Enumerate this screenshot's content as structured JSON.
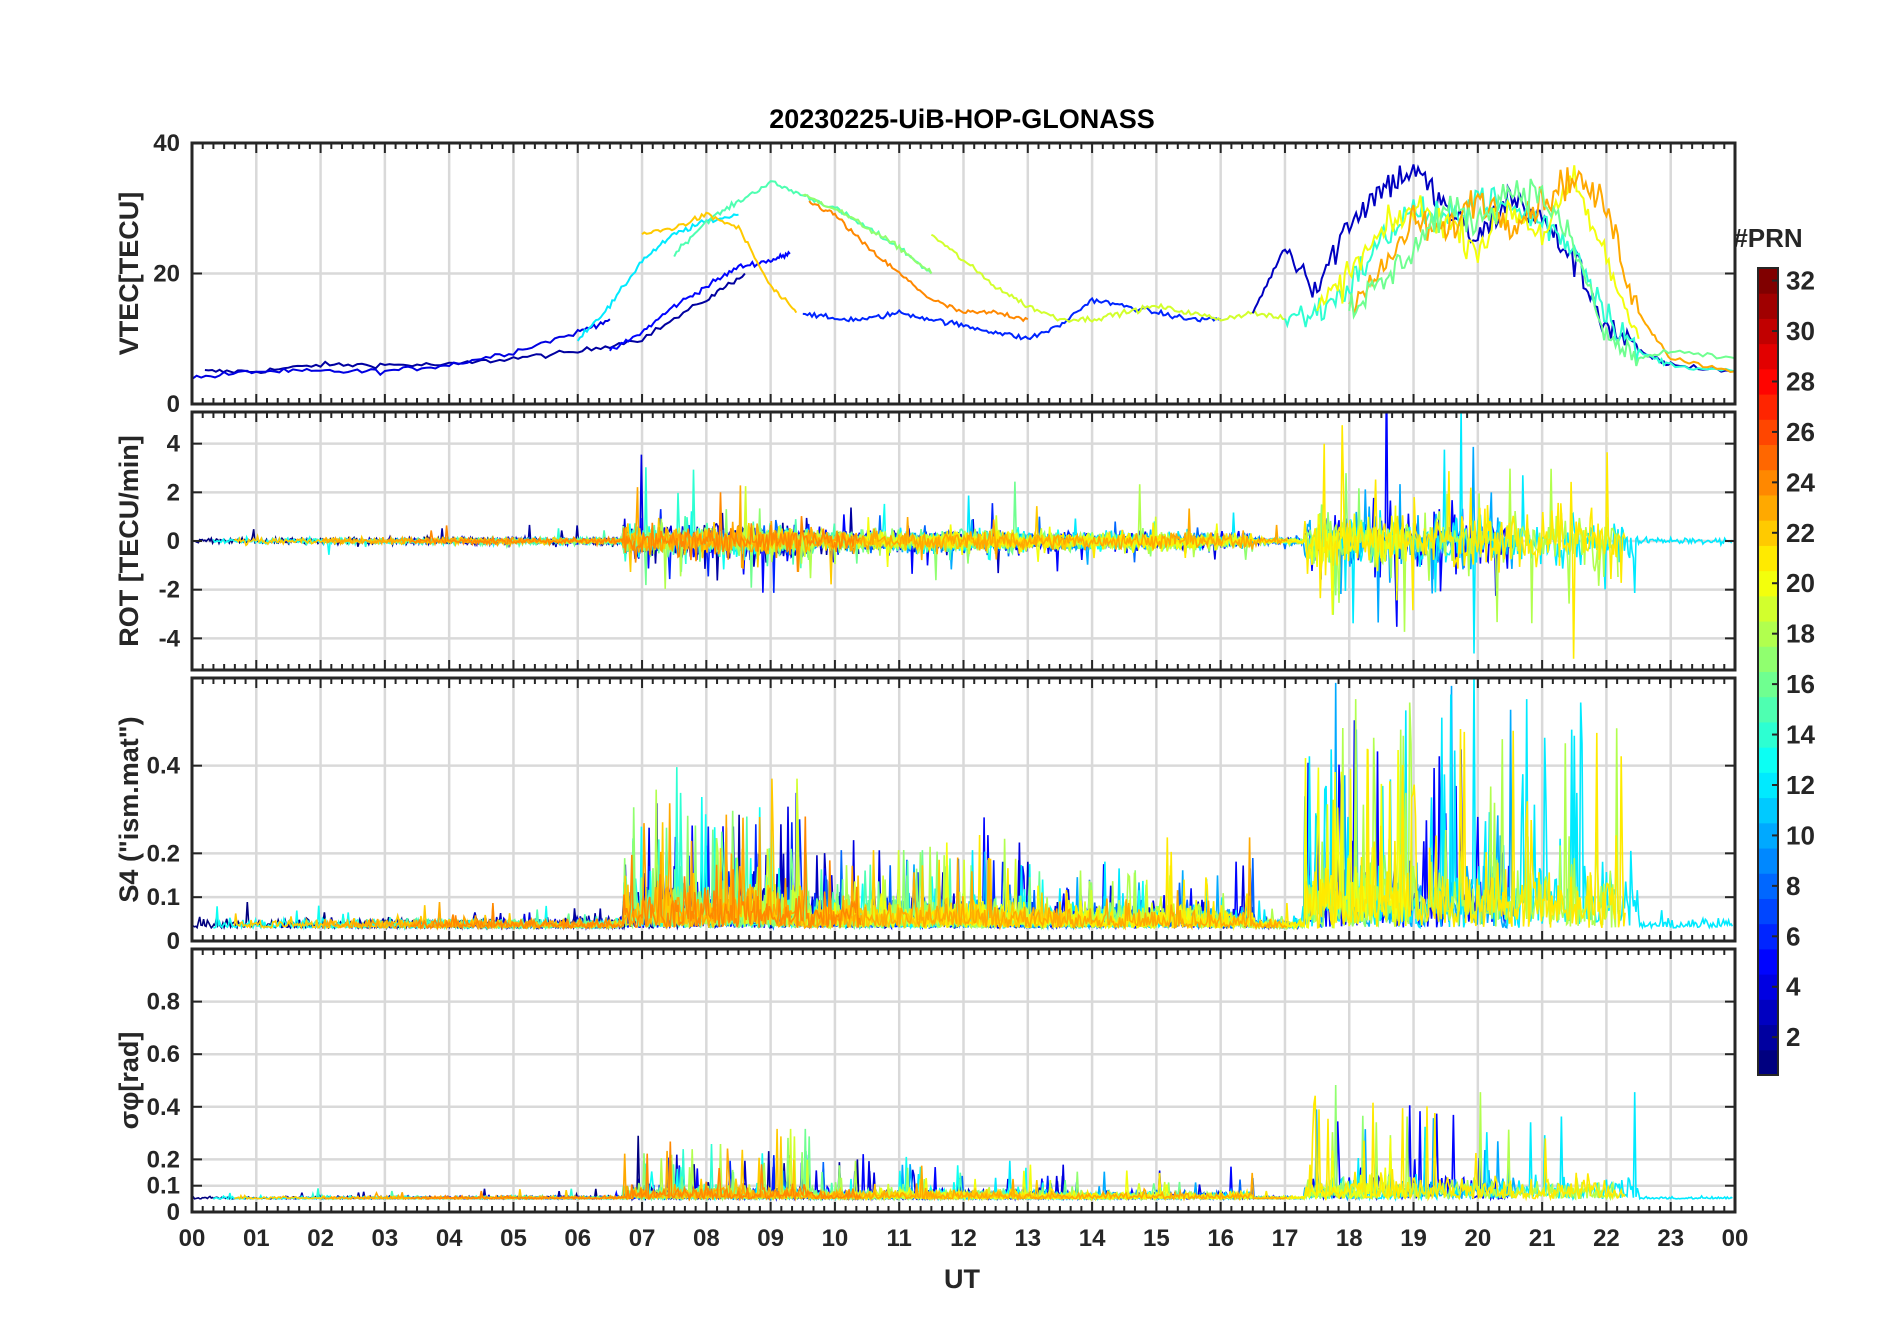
{
  "chart_data": {
    "title": "20230225-UiB-HOP-GLONASS",
    "type": "line",
    "xlabel": "UT",
    "x_ticks": [
      "00",
      "01",
      "02",
      "03",
      "04",
      "05",
      "06",
      "07",
      "08",
      "09",
      "10",
      "11",
      "12",
      "13",
      "14",
      "15",
      "16",
      "17",
      "18",
      "19",
      "20",
      "21",
      "22",
      "23",
      "00"
    ],
    "xlim_hours": [
      0,
      24
    ],
    "grid": true,
    "colormap": "jet",
    "colorbar": {
      "title": "#PRN",
      "range": [
        1,
        32
      ],
      "ticks": [
        "2",
        "4",
        "6",
        "8",
        "10",
        "12",
        "14",
        "16",
        "18",
        "20",
        "22",
        "24",
        "26",
        "28",
        "30",
        "32"
      ],
      "placement": "right"
    },
    "panels": [
      {
        "id": "vtec",
        "ylabel": "VTEC[TECU]",
        "ylim": [
          0,
          40
        ],
        "yticks": [
          {
            "v": 0,
            "t": "0"
          },
          {
            "v": 20,
            "t": "20"
          },
          {
            "v": 40,
            "t": "40"
          }
        ],
        "series": [
          {
            "prn": 2,
            "x": [
              0.2,
              1,
              2,
              3,
              4,
              5,
              6,
              7,
              8,
              8.6
            ],
            "y": [
              5,
              5,
              6,
              6,
              6,
              7,
              8,
              10,
              16,
              20
            ]
          },
          {
            "prn": 4,
            "x": [
              0,
              1,
              2,
              3,
              4,
              5,
              6,
              6.5
            ],
            "y": [
              4,
              5,
              5,
              5,
              6,
              8,
              11,
              13
            ]
          },
          {
            "prn": 5,
            "x": [
              6.5,
              7,
              7.5,
              8,
              8.5,
              9,
              9.3
            ],
            "y": [
              8,
              11,
              15,
              18,
              21,
              22,
              23
            ]
          },
          {
            "prn": 12,
            "x": [
              6,
              6.5,
              7,
              7.5,
              8,
              8.5
            ],
            "y": [
              10,
              15,
              22,
              26,
              28,
              29
            ]
          },
          {
            "prn": 15,
            "x": [
              7.5,
              8,
              8.5,
              9,
              9.5,
              10,
              10.5,
              11,
              11.5
            ],
            "y": [
              23,
              28,
              31,
              34,
              32,
              30,
              27,
              24,
              20
            ]
          },
          {
            "prn": 17,
            "x": [
              9.5,
              10,
              10.5,
              11,
              11.5
            ],
            "y": [
              32,
              30,
              27,
              24,
              20
            ]
          },
          {
            "prn": 22,
            "x": [
              7,
              7.5,
              8,
              8.5,
              9,
              9.4
            ],
            "y": [
              26,
              27,
              29,
              27,
              18,
              14
            ]
          },
          {
            "prn": 24,
            "x": [
              9.6,
              10,
              10.5,
              11,
              11.5,
              12,
              12.5,
              13
            ],
            "y": [
              31,
              29,
              24,
              20,
              16,
              14,
              14,
              13
            ]
          },
          {
            "prn": 6,
            "x": [
              9.5,
              10,
              10.5,
              11,
              11.5,
              12,
              12.5,
              13,
              13.5,
              14,
              14.5,
              15,
              15.5,
              16
            ],
            "y": [
              14,
              13,
              13,
              14,
              13,
              12,
              11,
              10,
              12,
              16,
              15,
              14,
              13,
              13
            ]
          },
          {
            "prn": 19,
            "x": [
              11.5,
              12,
              12.5,
              13,
              13.5,
              14,
              14.5,
              15,
              15.5,
              16,
              16.5,
              17
            ],
            "y": [
              26,
              22,
              18,
              15,
              13,
              13,
              14,
              15,
              14,
              13,
              14,
              13
            ]
          },
          {
            "prn": 3,
            "x": [
              16.5,
              17,
              17.5,
              18,
              18.5,
              19,
              19.5,
              20,
              20.5,
              21,
              21.5,
              22,
              22.5,
              23,
              24
            ],
            "y": [
              14,
              24,
              18,
              28,
              33,
              36,
              30,
              25,
              32,
              28,
              22,
              12,
              8,
              6,
              5
            ]
          },
          {
            "prn": 14,
            "x": [
              17,
              17.5,
              18,
              18.5,
              19,
              19.5,
              20,
              20.5,
              21,
              21.5,
              22,
              22.5,
              23,
              24
            ],
            "y": [
              13,
              14,
              18,
              25,
              30,
              28,
              32,
              30,
              28,
              24,
              14,
              8,
              6,
              5
            ]
          },
          {
            "prn": 20,
            "x": [
              17.5,
              18,
              18.5,
              19,
              19.5,
              20,
              20.5,
              21,
              21.5,
              22,
              22.5
            ],
            "y": [
              14,
              20,
              26,
              30,
              28,
              24,
              30,
              26,
              34,
              22,
              10
            ]
          },
          {
            "prn": 23,
            "x": [
              18,
              18.5,
              19,
              19.5,
              20,
              20.5,
              21,
              21.5,
              22,
              22.5,
              23,
              24
            ],
            "y": [
              16,
              20,
              28,
              26,
              32,
              28,
              31,
              35,
              30,
              14,
              7,
              5
            ]
          },
          {
            "prn": 16,
            "x": [
              18,
              18.5,
              19,
              19.5,
              20,
              20.5,
              21,
              21.5,
              22,
              22.5,
              23,
              24
            ],
            "y": [
              15,
              18,
              24,
              30,
              28,
              33,
              32,
              24,
              10,
              7,
              8,
              7
            ]
          }
        ]
      },
      {
        "id": "rot",
        "ylabel": "ROT [TECU/min]",
        "ylim": [
          -5.3,
          5.3
        ],
        "yticks": [
          {
            "v": -4,
            "t": "-4"
          },
          {
            "v": -2,
            "t": "-2"
          },
          {
            "v": 0,
            "t": "0"
          },
          {
            "v": 2,
            "t": "2"
          },
          {
            "v": 4,
            "t": "4"
          }
        ]
      },
      {
        "id": "s4",
        "ylabel": "S4 (\"ism.mat\")",
        "ylim": [
          0,
          0.6
        ],
        "yticks": [
          {
            "v": 0,
            "t": "0"
          },
          {
            "v": 0.1,
            "t": "0.1"
          },
          {
            "v": 0.2,
            "t": "0.2"
          },
          {
            "v": 0.4,
            "t": "0.4"
          }
        ]
      },
      {
        "id": "sigma",
        "ylabel": "σφ[rad]",
        "ylim": [
          0,
          1
        ],
        "yticks": [
          {
            "v": 0,
            "t": "0"
          },
          {
            "v": 0.1,
            "t": "0.1"
          },
          {
            "v": 0.2,
            "t": "0.2"
          },
          {
            "v": 0.4,
            "t": "0.4"
          },
          {
            "v": 0.6,
            "t": "0.6"
          },
          {
            "v": 0.8,
            "t": "0.8"
          }
        ]
      }
    ]
  }
}
